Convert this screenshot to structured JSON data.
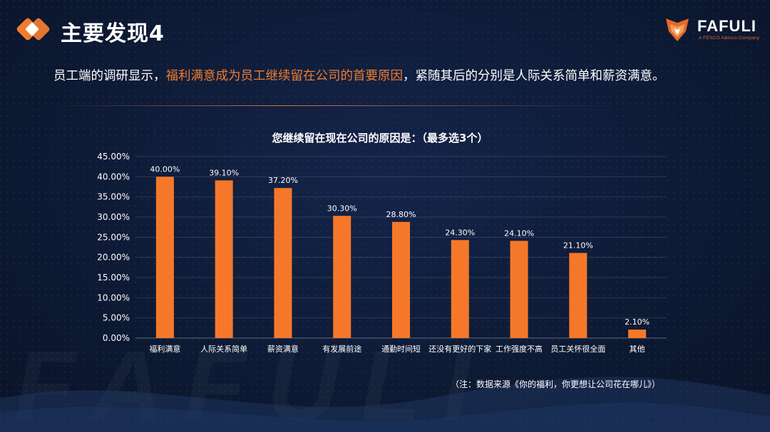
{
  "header": {
    "title": "主要发现4"
  },
  "logo": {
    "name": "FAFULI",
    "subtitle": "A FESCO Adecco Company",
    "accent_color": "#e36a2a"
  },
  "intro": {
    "part1": "员工端的调研显示，",
    "highlight": "福利满意成为员工继续留在公司的首要原因",
    "part2": "，紧随其后的分别是人际关系简单和薪资满意。"
  },
  "watermark": "FAFULI",
  "source_note": "（注：数据来源《你的福利，你更想让公司花在哪儿》）",
  "colors": {
    "accent": "#f07c2f",
    "bar": "#f5782a",
    "background": "#0d1a33"
  },
  "chart_data": {
    "type": "bar",
    "title": "您继续留在现在公司的原因是：（最多选3个）",
    "categories": [
      "福利满意",
      "人际关系简单",
      "薪资满意",
      "有发展前途",
      "通勤时间短",
      "还没有更好的下家",
      "工作强度不高",
      "员工关怀很全面",
      "其他"
    ],
    "values": [
      40.0,
      39.1,
      37.2,
      30.3,
      28.8,
      24.3,
      24.1,
      21.1,
      2.1
    ],
    "value_labels": [
      "40.00%",
      "39.10%",
      "37.20%",
      "30.30%",
      "28.80%",
      "24.30%",
      "24.10%",
      "21.10%",
      "2.10%"
    ],
    "yticks": [
      "0.00%",
      "5.00%",
      "10.00%",
      "15.00%",
      "20.00%",
      "25.00%",
      "30.00%",
      "35.00%",
      "40.00%",
      "45.00%"
    ],
    "ylim": [
      0,
      45
    ],
    "xlabel": "",
    "ylabel": "",
    "grid": true
  }
}
